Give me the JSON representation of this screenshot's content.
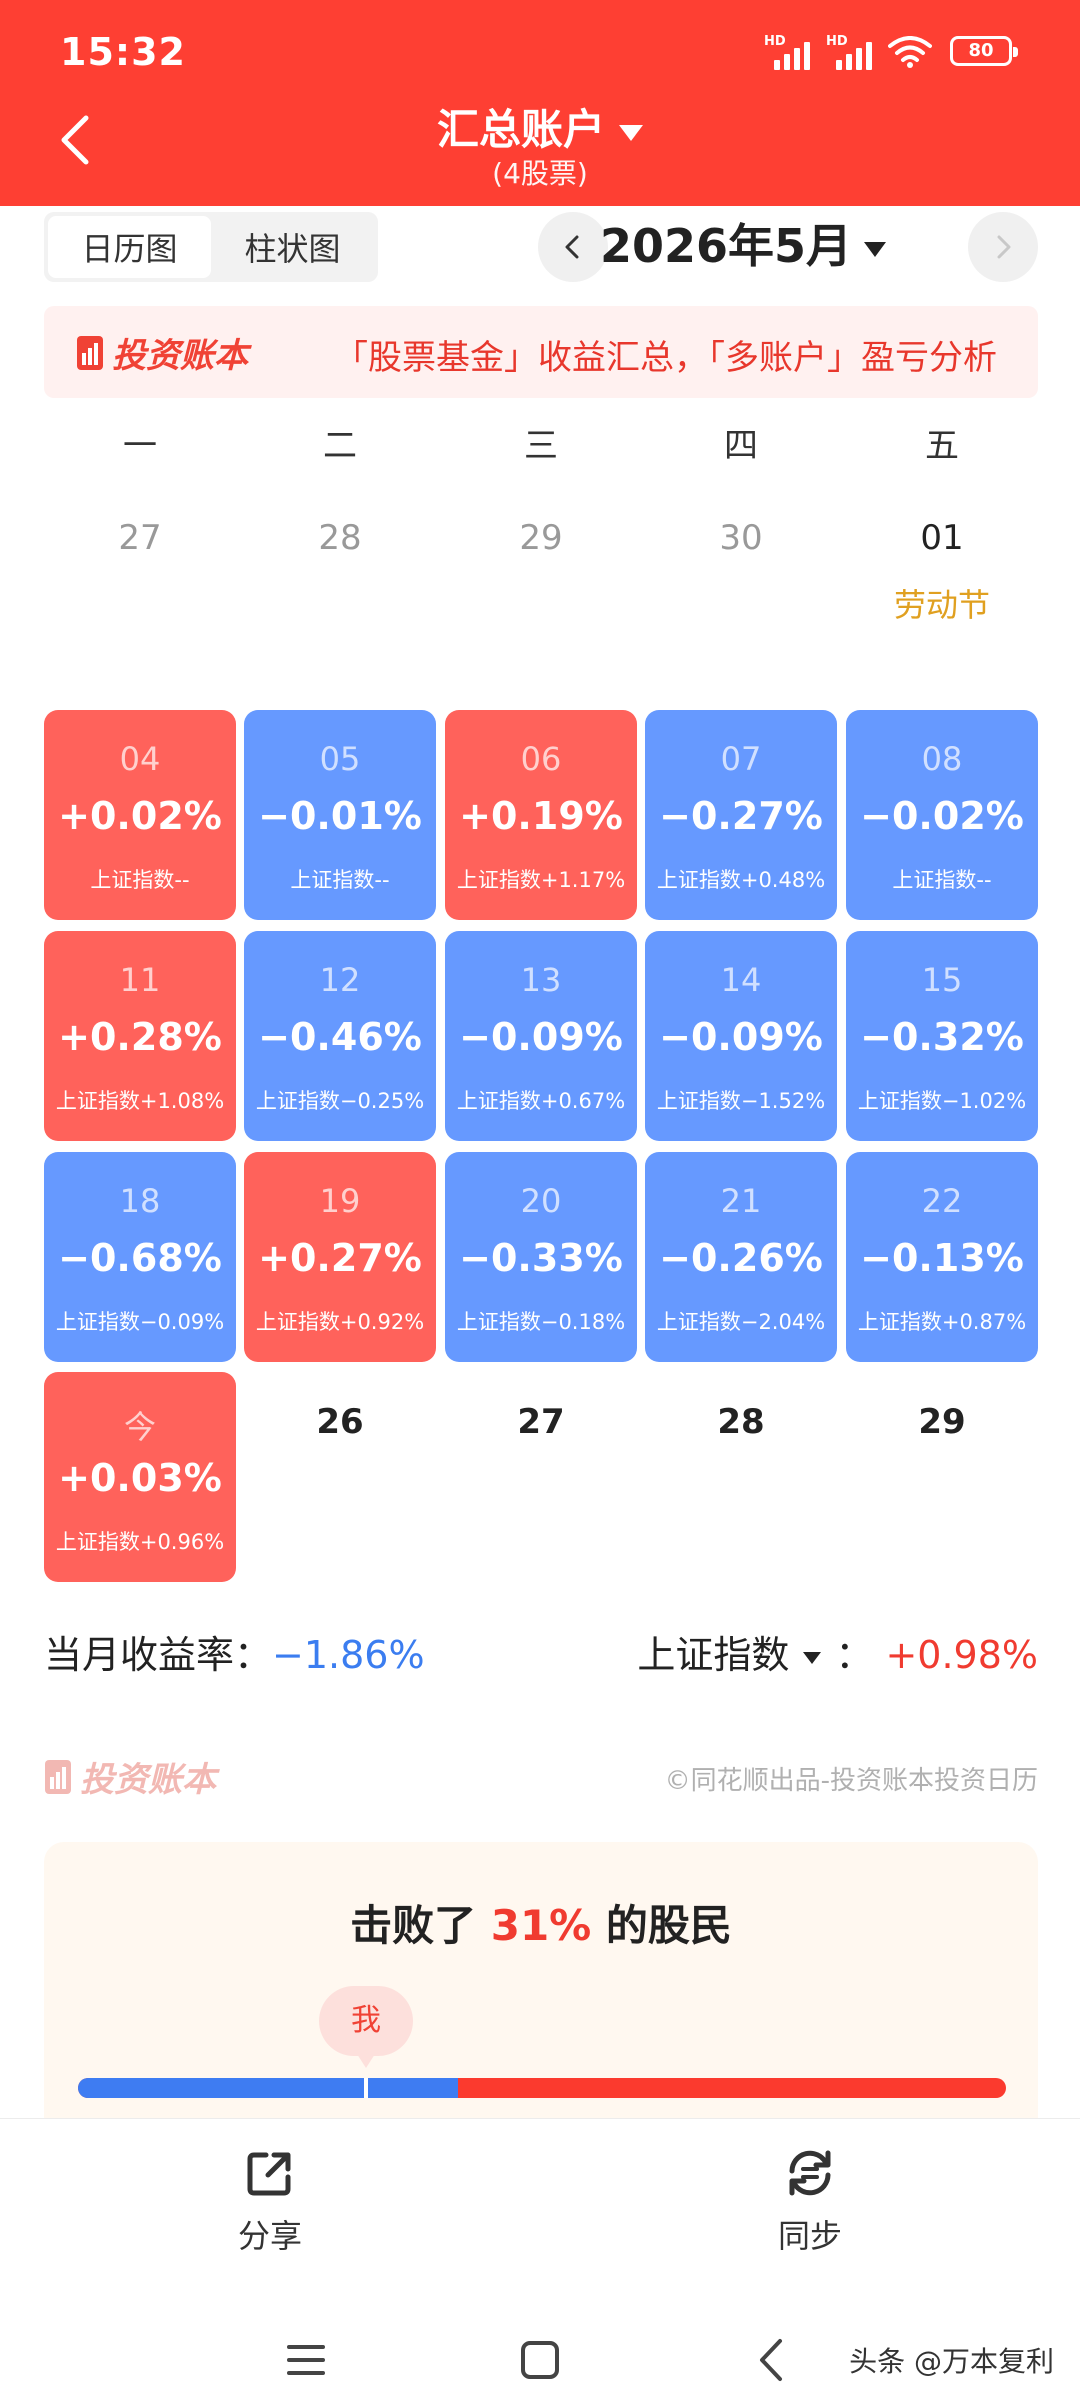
{
  "status_bar": {
    "time": "15:32",
    "signal_label": "HD",
    "battery": "80"
  },
  "header": {
    "title": "汇总账户",
    "subtitle": "(4股票)"
  },
  "view_toggle": {
    "calendar": "日历图",
    "bar": "柱状图"
  },
  "month_picker": {
    "label": "2026年5月"
  },
  "banner": {
    "brand": "投资账本",
    "text": "「股票基金」收益汇总，「多账户」盈亏分析"
  },
  "weekdays": [
    "一",
    "二",
    "三",
    "四",
    "五"
  ],
  "prev_week": [
    {
      "day": "27"
    },
    {
      "day": "28"
    },
    {
      "day": "29"
    },
    {
      "day": "30"
    },
    {
      "day": "01",
      "note": "劳动节"
    }
  ],
  "days": [
    {
      "day": "04",
      "pct": "+0.02%",
      "index": "上证指数--",
      "color": "red"
    },
    {
      "day": "05",
      "pct": "−0.01%",
      "index": "上证指数--",
      "color": "blue"
    },
    {
      "day": "06",
      "pct": "+0.19%",
      "index": "上证指数+1.17%",
      "color": "red"
    },
    {
      "day": "07",
      "pct": "−0.27%",
      "index": "上证指数+0.48%",
      "color": "blue"
    },
    {
      "day": "08",
      "pct": "−0.02%",
      "index": "上证指数--",
      "color": "blue"
    },
    {
      "day": "11",
      "pct": "+0.28%",
      "index": "上证指数+1.08%",
      "color": "red"
    },
    {
      "day": "12",
      "pct": "−0.46%",
      "index": "上证指数−0.25%",
      "color": "blue"
    },
    {
      "day": "13",
      "pct": "−0.09%",
      "index": "上证指数+0.67%",
      "color": "blue"
    },
    {
      "day": "14",
      "pct": "−0.09%",
      "index": "上证指数−1.52%",
      "color": "blue"
    },
    {
      "day": "15",
      "pct": "−0.32%",
      "index": "上证指数−1.02%",
      "color": "blue"
    },
    {
      "day": "18",
      "pct": "−0.68%",
      "index": "上证指数−0.09%",
      "color": "blue"
    },
    {
      "day": "19",
      "pct": "+0.27%",
      "index": "上证指数+0.92%",
      "color": "red"
    },
    {
      "day": "20",
      "pct": "−0.33%",
      "index": "上证指数−0.18%",
      "color": "blue"
    },
    {
      "day": "21",
      "pct": "−0.26%",
      "index": "上证指数−2.04%",
      "color": "blue"
    },
    {
      "day": "22",
      "pct": "−0.13%",
      "index": "上证指数+0.87%",
      "color": "blue"
    },
    {
      "day": "今",
      "pct": "+0.03%",
      "index": "上证指数+0.96%",
      "color": "red"
    }
  ],
  "future_days": [
    "26",
    "27",
    "28",
    "29"
  ],
  "summary": {
    "month_label": "当月收益率：",
    "month_value": "−1.86%",
    "index_label": "上证指数",
    "index_sep": "：",
    "index_value": "+0.98%"
  },
  "footer_brand": {
    "brand": "投资账本",
    "credit": "©同花顺出品-投资账本投资日历"
  },
  "rank_card": {
    "prefix": "击败了",
    "value": "31%",
    "suffix": "的股民",
    "me": "我",
    "percentile": 0.31
  },
  "actions": {
    "share": "分享",
    "sync": "同步"
  },
  "watermark": "头条 @万本复利",
  "colors": {
    "header": "#fe3f33",
    "gain": "#ff625b",
    "loss": "#6699ff"
  }
}
